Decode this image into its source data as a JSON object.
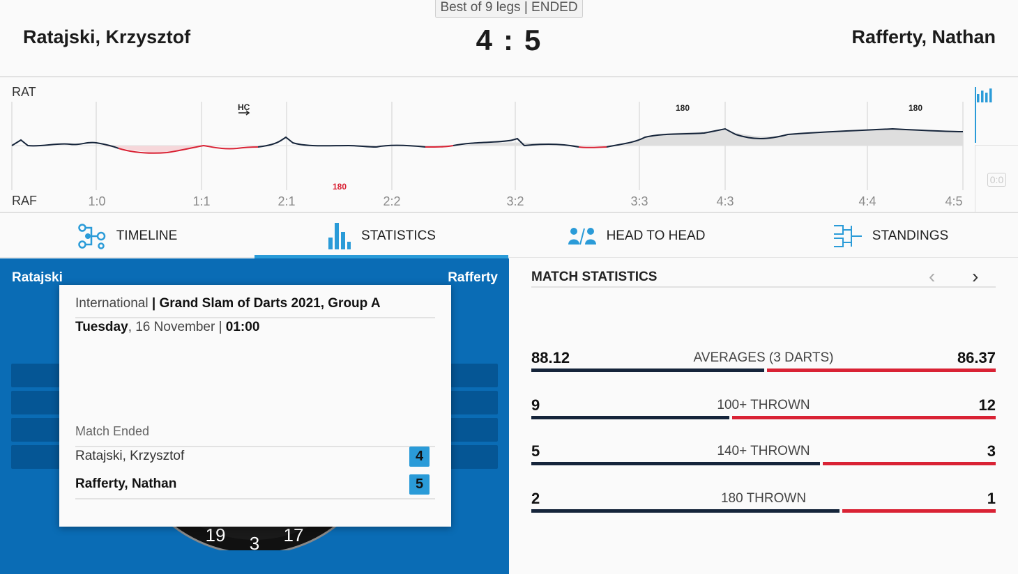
{
  "header": {
    "format": "Best of 9 legs | ENDED",
    "player_left": "Ratajski, Krzysztof",
    "player_right": "Rafferty, Nathan",
    "score_left": "4",
    "score_sep": ":",
    "score_right": "5"
  },
  "momentum": {
    "top_label": "RAT",
    "bottom_label": "RAF",
    "leg_scores": [
      "1:0",
      "1:1",
      "2:1",
      "2:2",
      "3:2",
      "3:3",
      "4:3",
      "4:4",
      "4:5"
    ],
    "markers": {
      "hc": "HC",
      "top_180_a": "180",
      "top_180_b": "180",
      "bottom_180": "180"
    },
    "zero_toggle": "0:0",
    "colors": {
      "rat": "#15243a",
      "raf": "#d92234",
      "accent": "#2a9bd8"
    }
  },
  "tabs": [
    {
      "label": "TIMELINE",
      "icon": "timeline-icon"
    },
    {
      "label": "STATISTICS",
      "icon": "statistics-icon",
      "active": true
    },
    {
      "label": "HEAD TO HEAD",
      "icon": "head-to-head-icon"
    },
    {
      "label": "STANDINGS",
      "icon": "standings-icon"
    }
  ],
  "board_panel": {
    "left_name": "Ratajski",
    "right_name": "Rafferty",
    "board_numbers": [
      "19",
      "3",
      "17"
    ]
  },
  "info_card": {
    "category": "International",
    "separator": " | ",
    "tournament": "Grand Slam of Darts 2021, Group A",
    "day": "Tuesday",
    "date": ", 16 November | ",
    "time": "01:00",
    "status": "Match Ended",
    "results": [
      {
        "name": "Ratajski, Krzysztof",
        "score": "4",
        "winner": false
      },
      {
        "name": "Rafferty, Nathan",
        "score": "5",
        "winner": true
      }
    ]
  },
  "stats": {
    "title": "MATCH STATISTICS",
    "prev": "‹",
    "next": "›",
    "rows": [
      {
        "label": "AVERAGES (3 DARTS)",
        "left": "88.12",
        "right": "86.37",
        "left_share": 0.505
      },
      {
        "label": "100+ THROWN",
        "left": "9",
        "right": "12",
        "left_share": 0.429
      },
      {
        "label": "140+ THROWN",
        "left": "5",
        "right": "3",
        "left_share": 0.625
      },
      {
        "label": "180 THROWN",
        "left": "2",
        "right": "1",
        "left_share": 0.667
      }
    ]
  }
}
